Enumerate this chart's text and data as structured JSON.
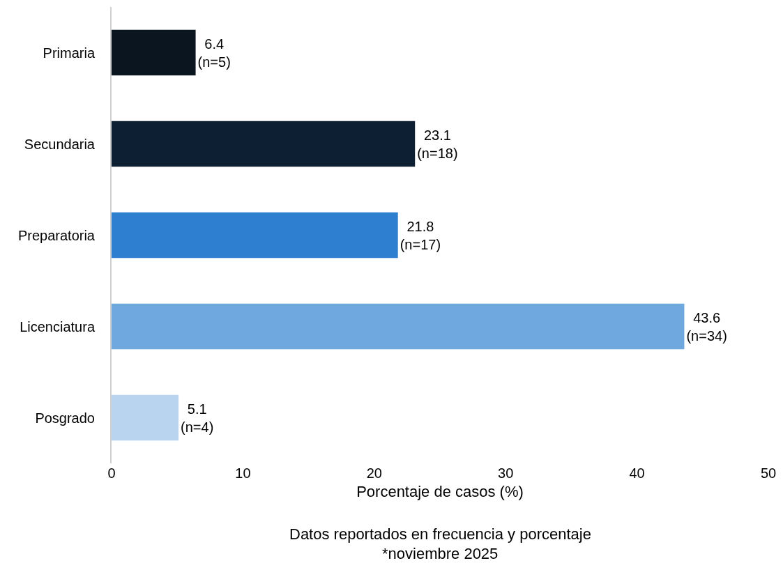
{
  "chart_data": {
    "type": "bar",
    "orientation": "horizontal",
    "xlabel": "Porcentaje de casos (%)",
    "categories": [
      "Primaria",
      "Secundaria",
      "Preparatoria",
      "Licenciatura",
      "Posgrado"
    ],
    "values": [
      6.4,
      23.1,
      21.8,
      43.6,
      5.1
    ],
    "colors": [
      "#0b1520",
      "#0d1f33",
      "#2e7fd0",
      "#6fa8de",
      "#b9d4ef"
    ],
    "value_labels": [
      "6.4\n(n=5)",
      "23.1\n(n=18)",
      "21.8\n(n=17)",
      "43.6\n(n=34)",
      "5.1\n(n=4)"
    ],
    "xlim": [
      0,
      50
    ],
    "xticks": [
      0,
      10,
      20,
      30,
      40,
      50
    ],
    "annotations": [
      "Datos reportados en frecuencia y porcentaje",
      "*noviembre 2025"
    ]
  }
}
